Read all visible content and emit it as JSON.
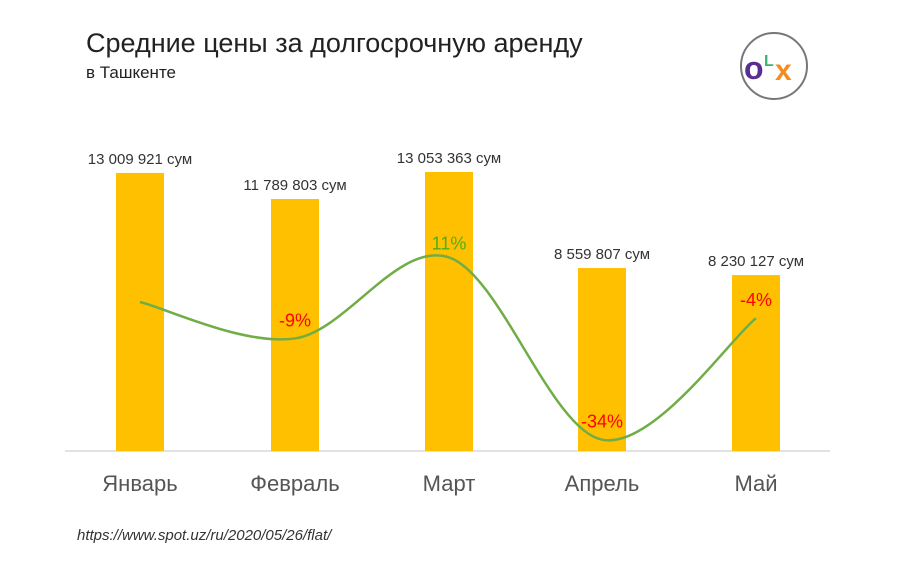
{
  "chart_data": {
    "type": "bar",
    "title": "Средние цены за долгосрочную аренду",
    "subtitle": "в Ташкенте",
    "categories": [
      "Январь",
      "Февраль",
      "Март",
      "Апрель",
      "Май"
    ],
    "values": [
      13009921,
      11789803,
      13053363,
      8559807,
      8230127
    ],
    "value_labels": [
      "13 009 921 сум",
      "11 789 803 сум",
      "13 053 363 сум",
      "8 559 807 сум",
      "8 230 127 сум"
    ],
    "ylim": [
      0,
      13053363
    ],
    "xlabel": "",
    "ylabel": "",
    "grid": false,
    "line_series": {
      "name": "change",
      "values": [
        0,
        -9,
        11,
        -34,
        -4
      ],
      "labels": [
        "",
        "-9%",
        "11%",
        "-34%",
        "-4%"
      ]
    },
    "colors": {
      "bar": "#FFC000",
      "line": "#70AD47",
      "negative": "#FF0000",
      "positive": "#4CAF1A",
      "axis": "#D9D9D9"
    }
  },
  "logo": "OLX",
  "source": "https://www.spot.uz/ru/2020/05/26/flat/"
}
